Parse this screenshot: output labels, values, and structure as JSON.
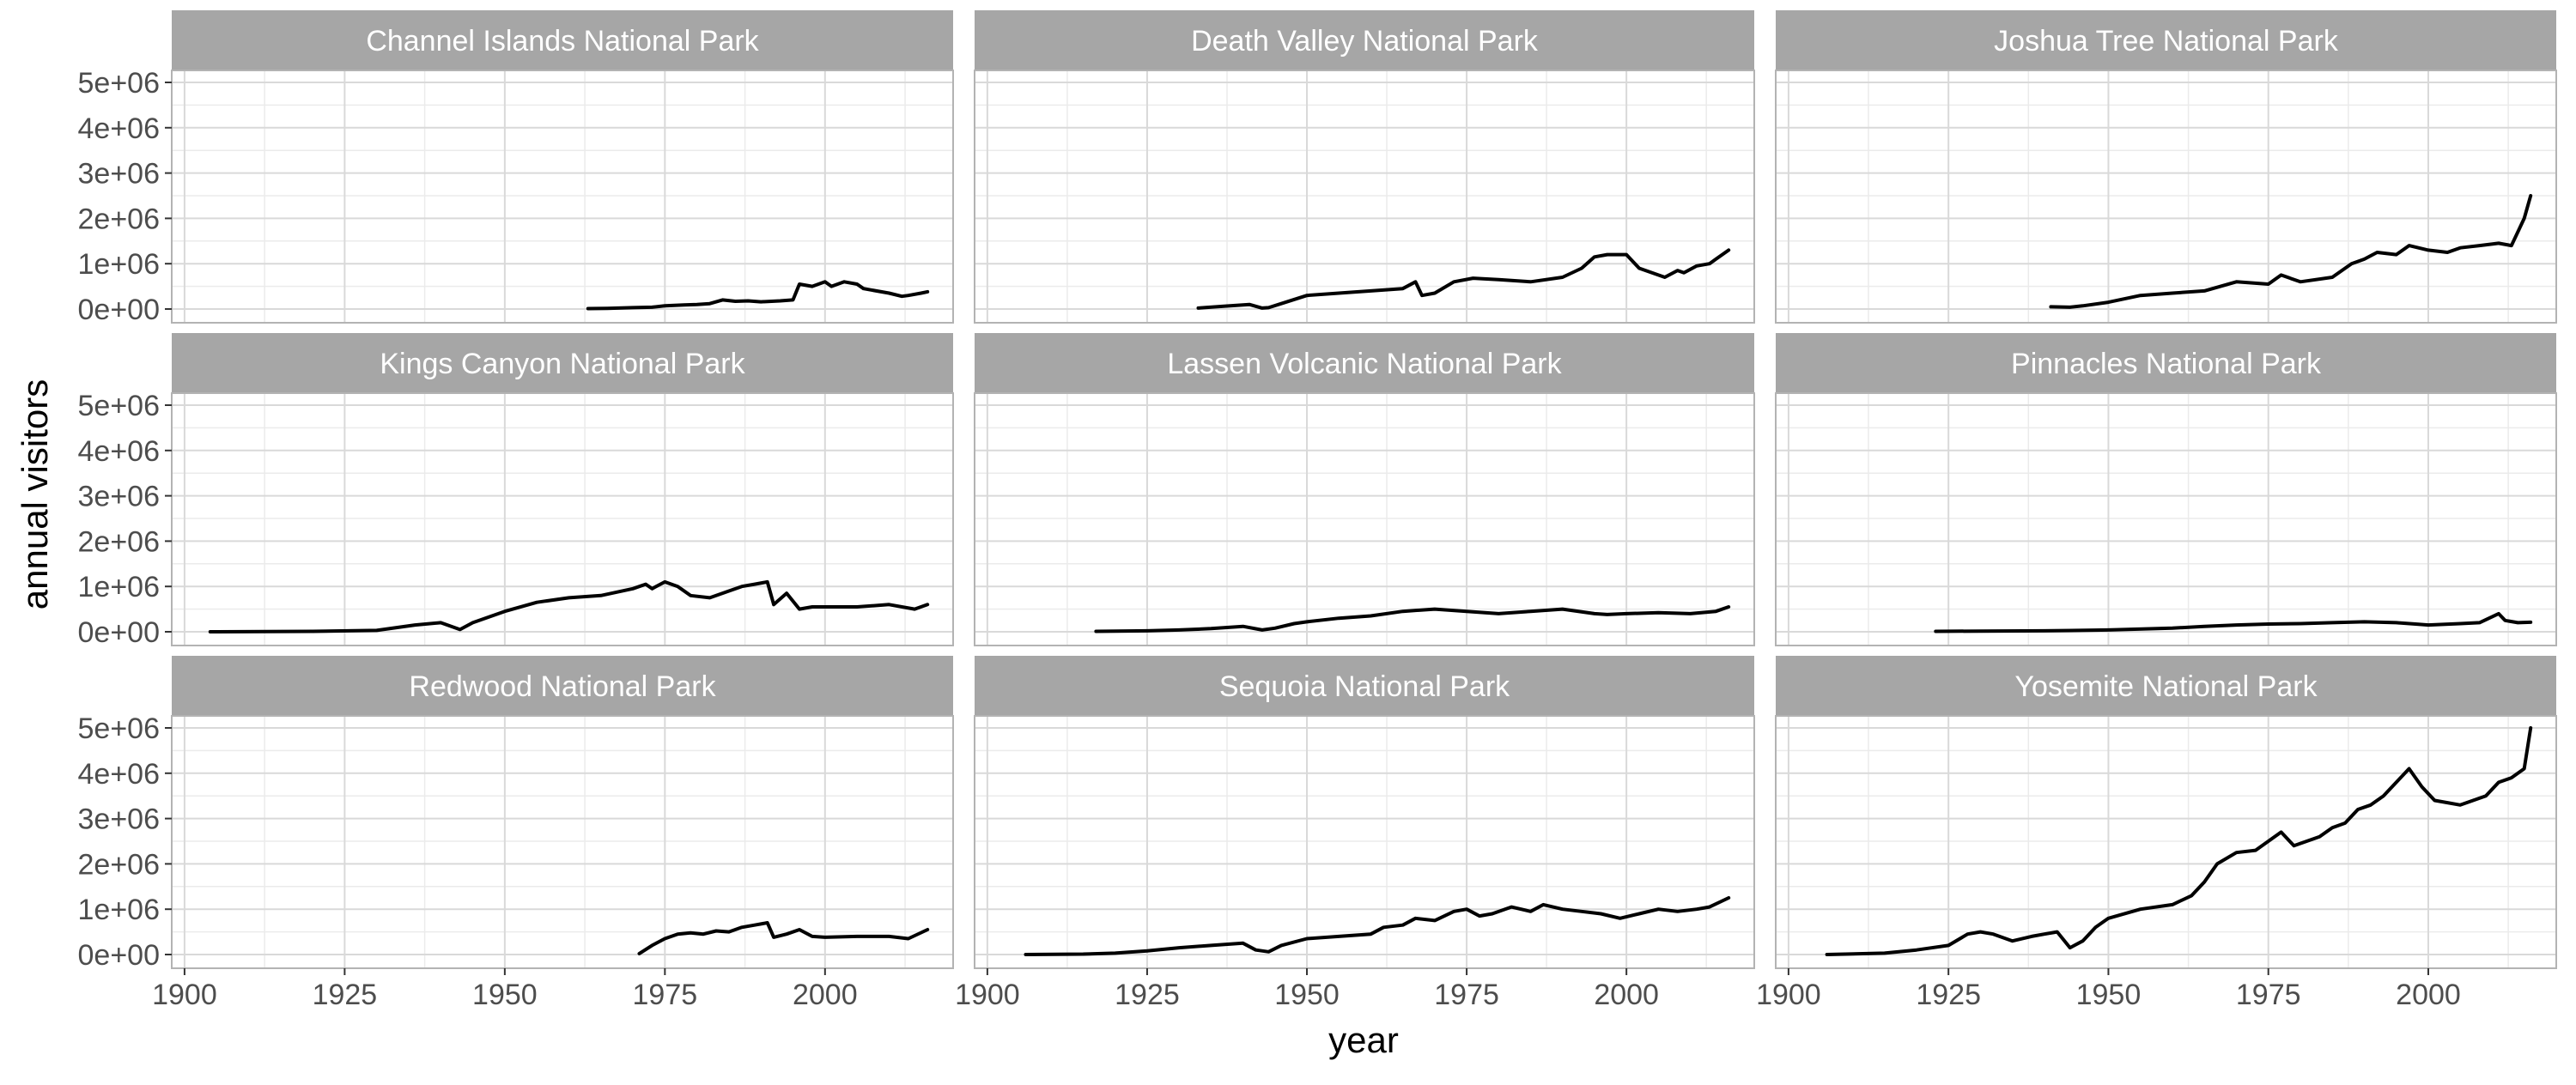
{
  "chart_data": {
    "type": "line",
    "layout": "facet grid, 3 columns x 3 rows, shared axes",
    "xlabel": "year",
    "ylabel": "annual visitors",
    "xlim": [
      1898,
      2020
    ],
    "ylim": [
      0,
      5000000
    ],
    "x_ticks": [
      1900,
      1925,
      1950,
      1975,
      2000
    ],
    "y_ticks": [
      0,
      1000000,
      2000000,
      3000000,
      4000000,
      5000000
    ],
    "x_tick_labels": [
      "1900",
      "1925",
      "1950",
      "1975",
      "2000"
    ],
    "y_tick_labels": [
      "0e+00",
      "1e+06",
      "2e+06",
      "3e+06",
      "4e+06",
      "5e+06"
    ],
    "grid": true,
    "legend": "none",
    "colors": {
      "line": "#000000",
      "strip": "#a6a6a6",
      "strip_text": "#ffffff",
      "grid_major": "#d9d9d9",
      "grid_minor": "#ebebeb",
      "panel_border": "#b3b3b3"
    },
    "series": [
      {
        "name": "Channel Islands National Park",
        "x": [
          1963,
          1966,
          1970,
          1973,
          1975,
          1978,
          1980,
          1982,
          1984,
          1986,
          1988,
          1990,
          1993,
          1995,
          1996,
          1998,
          2000,
          2001,
          2003,
          2005,
          2006,
          2008,
          2010,
          2012,
          2013,
          2015,
          2016
        ],
        "y": [
          10000,
          15000,
          30000,
          40000,
          70000,
          90000,
          100000,
          120000,
          200000,
          170000,
          180000,
          160000,
          180000,
          200000,
          550000,
          500000,
          600000,
          500000,
          600000,
          550000,
          450000,
          400000,
          350000,
          280000,
          300000,
          350000,
          380000
        ]
      },
      {
        "name": "Death Valley National Park",
        "x": [
          1933,
          1937,
          1941,
          1943,
          1944,
          1946,
          1950,
          1955,
          1960,
          1965,
          1967,
          1968,
          1970,
          1973,
          1976,
          1980,
          1985,
          1990,
          1993,
          1995,
          1997,
          2000,
          2002,
          2004,
          2006,
          2008,
          2009,
          2011,
          2013,
          2014,
          2016
        ],
        "y": [
          20000,
          60000,
          100000,
          20000,
          30000,
          120000,
          300000,
          350000,
          400000,
          450000,
          600000,
          300000,
          350000,
          600000,
          680000,
          650000,
          600000,
          700000,
          900000,
          1150000,
          1200000,
          1200000,
          900000,
          800000,
          700000,
          850000,
          800000,
          950000,
          1000000,
          1100000,
          1300000
        ]
      },
      {
        "name": "Joshua Tree National Park",
        "x": [
          1941,
          1944,
          1946,
          1950,
          1955,
          1960,
          1965,
          1970,
          1975,
          1977,
          1980,
          1985,
          1988,
          1990,
          1992,
          1995,
          1997,
          2000,
          2003,
          2005,
          2008,
          2011,
          2013,
          2015,
          2016
        ],
        "y": [
          50000,
          40000,
          70000,
          150000,
          300000,
          350000,
          400000,
          600000,
          550000,
          750000,
          600000,
          700000,
          1000000,
          1100000,
          1250000,
          1200000,
          1400000,
          1300000,
          1250000,
          1350000,
          1400000,
          1450000,
          1400000,
          2000000,
          2500000
        ]
      },
      {
        "name": "Kings Canyon National Park",
        "x": [
          1904,
          1920,
          1930,
          1936,
          1940,
          1943,
          1945,
          1950,
          1955,
          1960,
          1965,
          1970,
          1972,
          1973,
          1975,
          1977,
          1979,
          1982,
          1985,
          1987,
          1989,
          1991,
          1992,
          1994,
          1996,
          1998,
          2000,
          2005,
          2010,
          2014,
          2016
        ],
        "y": [
          0,
          10000,
          30000,
          150000,
          200000,
          50000,
          200000,
          450000,
          650000,
          750000,
          800000,
          950000,
          1050000,
          950000,
          1100000,
          1000000,
          800000,
          750000,
          900000,
          1000000,
          1050000,
          1100000,
          600000,
          850000,
          500000,
          550000,
          550000,
          550000,
          600000,
          500000,
          600000
        ]
      },
      {
        "name": "Lassen Volcanic National Park",
        "x": [
          1917,
          1925,
          1930,
          1935,
          1940,
          1943,
          1945,
          1948,
          1950,
          1955,
          1960,
          1965,
          1970,
          1975,
          1980,
          1985,
          1990,
          1995,
          1997,
          2000,
          2005,
          2010,
          2014,
          2016
        ],
        "y": [
          10000,
          20000,
          40000,
          70000,
          120000,
          40000,
          80000,
          180000,
          220000,
          300000,
          350000,
          450000,
          500000,
          450000,
          400000,
          450000,
          500000,
          400000,
          380000,
          400000,
          420000,
          400000,
          450000,
          550000
        ]
      },
      {
        "name": "Pinnacles National Park",
        "x": [
          1923,
          1930,
          1940,
          1950,
          1960,
          1965,
          1970,
          1975,
          1980,
          1985,
          1990,
          1995,
          1998,
          2000,
          2005,
          2008,
          2011,
          2012,
          2014,
          2016
        ],
        "y": [
          10000,
          15000,
          20000,
          40000,
          80000,
          120000,
          150000,
          170000,
          180000,
          200000,
          220000,
          200000,
          170000,
          150000,
          180000,
          200000,
          400000,
          250000,
          200000,
          210000
        ]
      },
      {
        "name": "Redwood National Park",
        "x": [
          1971,
          1973,
          1975,
          1977,
          1979,
          1981,
          1983,
          1985,
          1987,
          1989,
          1991,
          1992,
          1994,
          1996,
          1998,
          2000,
          2005,
          2010,
          2013,
          2016
        ],
        "y": [
          20000,
          200000,
          350000,
          450000,
          480000,
          450000,
          520000,
          500000,
          600000,
          650000,
          700000,
          380000,
          450000,
          550000,
          400000,
          380000,
          400000,
          400000,
          350000,
          550000
        ]
      },
      {
        "name": "Sequoia National Park",
        "x": [
          1906,
          1915,
          1920,
          1925,
          1930,
          1935,
          1940,
          1942,
          1944,
          1946,
          1950,
          1955,
          1960,
          1962,
          1965,
          1967,
          1970,
          1973,
          1975,
          1977,
          1979,
          1982,
          1985,
          1987,
          1990,
          1993,
          1996,
          1999,
          2002,
          2005,
          2008,
          2011,
          2013,
          2016
        ],
        "y": [
          0,
          10000,
          30000,
          80000,
          150000,
          200000,
          250000,
          100000,
          60000,
          200000,
          350000,
          400000,
          450000,
          600000,
          650000,
          800000,
          750000,
          950000,
          1000000,
          850000,
          900000,
          1050000,
          950000,
          1100000,
          1000000,
          950000,
          900000,
          800000,
          900000,
          1000000,
          950000,
          1000000,
          1050000,
          1250000
        ]
      },
      {
        "name": "Yosemite National Park",
        "x": [
          1906,
          1915,
          1920,
          1925,
          1928,
          1930,
          1932,
          1935,
          1938,
          1940,
          1942,
          1944,
          1946,
          1948,
          1950,
          1955,
          1960,
          1963,
          1965,
          1967,
          1970,
          1973,
          1975,
          1977,
          1979,
          1981,
          1983,
          1985,
          1987,
          1989,
          1991,
          1993,
          1995,
          1997,
          1999,
          2001,
          2003,
          2005,
          2007,
          2009,
          2011,
          2013,
          2015,
          2016
        ],
        "y": [
          0,
          30000,
          100000,
          200000,
          450000,
          500000,
          450000,
          300000,
          400000,
          450000,
          500000,
          150000,
          300000,
          600000,
          800000,
          1000000,
          1100000,
          1300000,
          1600000,
          2000000,
          2250000,
          2300000,
          2500000,
          2700000,
          2400000,
          2500000,
          2600000,
          2800000,
          2900000,
          3200000,
          3300000,
          3500000,
          3800000,
          4100000,
          3700000,
          3400000,
          3350000,
          3300000,
          3400000,
          3500000,
          3800000,
          3900000,
          4100000,
          5000000
        ]
      }
    ]
  }
}
